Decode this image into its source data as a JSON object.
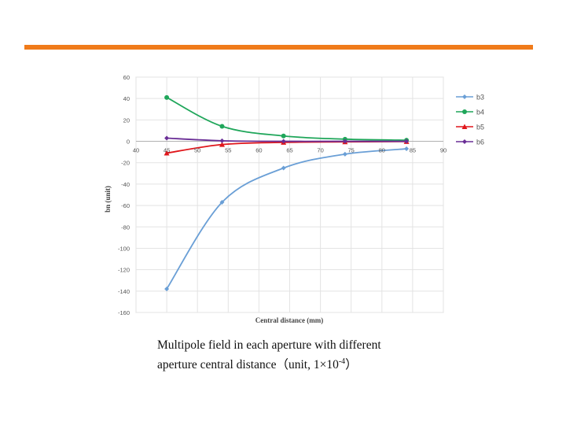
{
  "slide": {
    "accent_color": "#f07b1a",
    "caption_line1": "Multipole field in each aperture with different",
    "caption_line2_prefix": "aperture central distance（unit, 1×10",
    "caption_sup": "-4",
    "caption_line2_suffix": "）"
  },
  "chart_data": {
    "type": "line",
    "xlabel": "Central distance (mm)",
    "ylabel": "bn (unit)",
    "xlim": [
      40,
      90
    ],
    "ylim": [
      -160,
      60
    ],
    "x_ticks": [
      40,
      45,
      50,
      55,
      60,
      65,
      70,
      75,
      80,
      85,
      90
    ],
    "y_ticks": [
      60,
      40,
      20,
      0,
      -20,
      -40,
      -60,
      -80,
      -100,
      -120,
      -140,
      -160
    ],
    "x_tick_labels": [
      "40",
      "45",
      "50",
      "55",
      "60",
      "65",
      "70",
      "75",
      "80",
      "85",
      "90"
    ],
    "y_tick_labels": [
      "60",
      "40",
      "20",
      "0",
      "-20",
      "-40",
      "-60",
      "-80",
      "-100",
      "-120",
      "-140",
      "-160"
    ],
    "legend_position": "right",
    "grid": true,
    "series": [
      {
        "name": "b3",
        "color": "#6a9fd6",
        "marker": "diamond",
        "x": [
          45,
          54,
          64,
          74,
          84
        ],
        "y": [
          -138,
          -57,
          -25,
          -12,
          -7
        ]
      },
      {
        "name": "b4",
        "color": "#1fa65a",
        "marker": "circle",
        "x": [
          45,
          54,
          64,
          74,
          84
        ],
        "y": [
          41,
          14,
          5,
          2,
          1
        ]
      },
      {
        "name": "b5",
        "color": "#e0161b",
        "marker": "triangle",
        "x": [
          45,
          54,
          64,
          74,
          84
        ],
        "y": [
          -11,
          -3,
          -1,
          -0.5,
          -0.2
        ]
      },
      {
        "name": "b6",
        "color": "#6a2e96",
        "marker": "diamond",
        "x": [
          45,
          54,
          64,
          74,
          84
        ],
        "y": [
          3,
          0.5,
          0,
          0,
          0
        ]
      }
    ]
  }
}
